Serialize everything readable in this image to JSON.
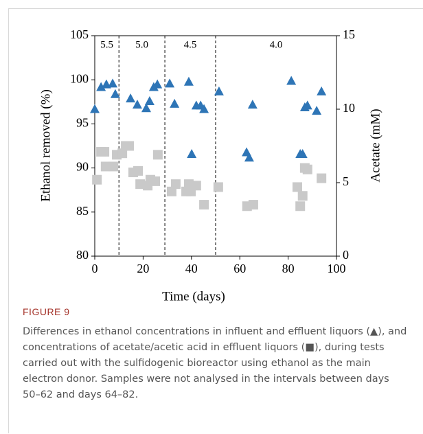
{
  "chart_data": {
    "type": "scatter",
    "x_label": "Time (days)",
    "y_label": "Ethanol removed (%)",
    "y2_label": "Acetate (mM)",
    "xlim": [
      0,
      100
    ],
    "xticks": [
      0,
      20,
      40,
      60,
      80,
      100
    ],
    "ylim": [
      80,
      105
    ],
    "yticks": [
      80,
      85,
      90,
      95,
      100,
      105
    ],
    "y2lim": [
      0,
      15
    ],
    "y2ticks": [
      0,
      5,
      10,
      15
    ],
    "phase_boundaries": [
      10,
      29,
      50
    ],
    "phase_labels": [
      "5.5",
      "5.0",
      "4.5",
      "4.0"
    ],
    "series": [
      {
        "name": "Ethanol removed",
        "marker": "triangle",
        "color": "#2e75b6",
        "x": [
          0,
          2.6,
          4.8,
          7.4,
          8.5,
          14.8,
          17.6,
          21.3,
          22.7,
          24.4,
          25.9,
          31,
          33,
          38.9,
          40.1,
          42,
          43.8,
          45.2,
          51.4,
          62.8,
          63.9,
          65.3,
          81.3,
          85,
          86,
          86.9,
          88,
          91.8,
          93.8
        ],
        "values": [
          96.7,
          99.2,
          99.5,
          99.6,
          98.4,
          97.9,
          97.2,
          96.8,
          97.6,
          99.2,
          99.5,
          99.6,
          97.3,
          99.8,
          91.6,
          97.1,
          97.1,
          96.7,
          98.7,
          91.8,
          91.2,
          97.2,
          99.9,
          91.6,
          91.6,
          96.9,
          97.1,
          96.5,
          98.7
        ]
      },
      {
        "name": "Acetate",
        "marker": "square",
        "color": "#c9c9c9",
        "axis": "y2",
        "x": [
          0.9,
          2.6,
          4,
          4.5,
          7.7,
          9.1,
          11.4,
          12.8,
          14.2,
          15.9,
          17.9,
          18.8,
          21.9,
          23,
          25,
          26.1,
          31.8,
          33.5,
          37.8,
          38.9,
          39.8,
          42,
          45.2,
          51.1,
          63,
          65.6,
          83.8,
          85,
          86,
          86.9,
          88,
          93.8
        ],
        "values": [
          5.2,
          7.1,
          7.1,
          6.1,
          6.1,
          6.9,
          7.0,
          7.5,
          7.5,
          5.7,
          5.8,
          4.9,
          4.8,
          5.2,
          5.1,
          6.9,
          4.4,
          4.9,
          4.4,
          4.9,
          4.4,
          4.8,
          3.5,
          4.7,
          3.4,
          3.5,
          4.7,
          3.4,
          4.1,
          6.0,
          5.9,
          5.3
        ]
      }
    ]
  },
  "caption": {
    "label": "FIGURE 9",
    "text": "Differences in ethanol concentrations in influent and effluent liquors (▲), and concentrations of acetate/acetic acid in effluent liquors (■), during tests carried out with the sulfidogenic bioreactor using ethanol as the main electron donor. Samples were not analysed in the intervals between days 50–62 and days 64–82."
  }
}
